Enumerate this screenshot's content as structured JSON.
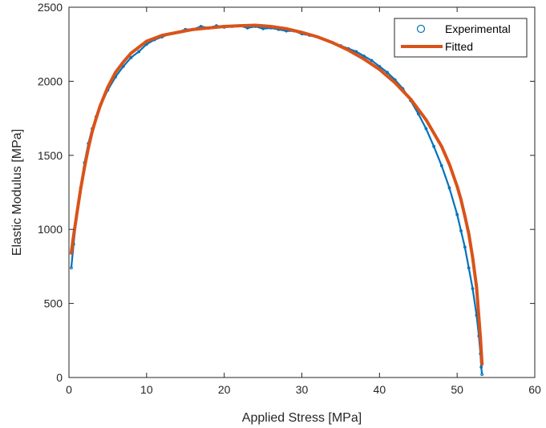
{
  "chart_data": {
    "type": "line",
    "title": "",
    "xlabel": "Applied Stress [MPa]",
    "ylabel": "Elastic Modulus [MPa]",
    "xlim": [
      0,
      60
    ],
    "ylim": [
      0,
      2500
    ],
    "xticks": [
      0,
      10,
      20,
      30,
      40,
      50,
      60
    ],
    "yticks": [
      0,
      500,
      1000,
      1500,
      2000,
      2500
    ],
    "grid": false,
    "legend_position": "top-right",
    "series": [
      {
        "name": "Experimental",
        "style": "markers",
        "marker": "circle-open",
        "color": "#0072BD",
        "x": [
          0.3,
          0.6,
          1.0,
          1.5,
          2.0,
          2.5,
          3.0,
          3.5,
          4.0,
          5.0,
          6.0,
          7.0,
          8.0,
          9.0,
          10.0,
          11.0,
          12.0,
          13.0,
          14.0,
          15.0,
          16.0,
          17.0,
          18.0,
          19.0,
          20.0,
          21.0,
          22.0,
          23.0,
          24.0,
          25.0,
          26.0,
          27.0,
          28.0,
          29.0,
          30.0,
          31.0,
          32.0,
          33.0,
          34.0,
          35.0,
          36.0,
          37.0,
          38.0,
          39.0,
          40.0,
          41.0,
          42.0,
          43.0,
          44.0,
          45.0,
          46.0,
          47.0,
          48.0,
          49.0,
          50.0,
          50.5,
          51.0,
          51.5,
          52.0,
          52.5,
          52.8,
          53.0,
          53.1,
          53.2
        ],
        "y": [
          740,
          900,
          1100,
          1280,
          1450,
          1580,
          1680,
          1760,
          1830,
          1940,
          2030,
          2100,
          2160,
          2200,
          2250,
          2280,
          2300,
          2320,
          2330,
          2350,
          2350,
          2370,
          2360,
          2375,
          2365,
          2370,
          2375,
          2360,
          2370,
          2355,
          2360,
          2350,
          2340,
          2340,
          2320,
          2310,
          2300,
          2280,
          2260,
          2240,
          2220,
          2200,
          2170,
          2140,
          2100,
          2060,
          2010,
          1950,
          1870,
          1780,
          1680,
          1560,
          1430,
          1280,
          1100,
          990,
          880,
          740,
          600,
          420,
          280,
          160,
          70,
          20
        ]
      },
      {
        "name": "Fitted",
        "style": "line",
        "color": "#D95319",
        "x": [
          0.3,
          0.5,
          1.0,
          1.5,
          2.0,
          2.5,
          3.0,
          3.5,
          4.0,
          5.0,
          6.0,
          7.0,
          8.0,
          9.0,
          10.0,
          12.0,
          14.0,
          16.0,
          18.0,
          20.0,
          22.0,
          24.0,
          26.0,
          28.0,
          30.0,
          32.0,
          34.0,
          36.0,
          38.0,
          40.0,
          42.0,
          44.0,
          46.0,
          48.0,
          49.0,
          50.0,
          50.5,
          51.0,
          51.5,
          52.0,
          52.5,
          53.0,
          53.2
        ],
        "y": [
          840,
          920,
          1100,
          1270,
          1420,
          1550,
          1660,
          1750,
          1830,
          1960,
          2060,
          2130,
          2190,
          2230,
          2270,
          2310,
          2330,
          2350,
          2360,
          2370,
          2375,
          2378,
          2370,
          2355,
          2330,
          2300,
          2260,
          2210,
          2150,
          2080,
          1990,
          1880,
          1740,
          1560,
          1440,
          1290,
          1200,
          1090,
          970,
          810,
          610,
          270,
          90
        ]
      }
    ]
  }
}
